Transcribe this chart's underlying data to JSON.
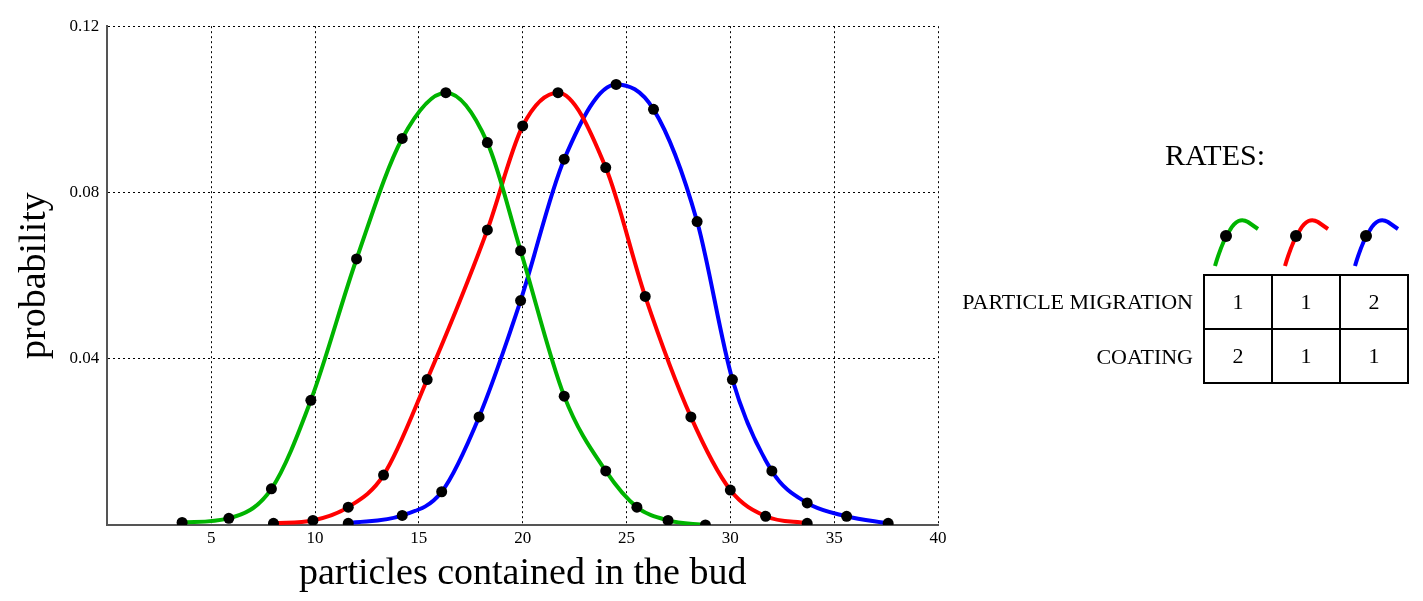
{
  "chart_data": {
    "type": "line",
    "xlabel": "particles contained in the bud",
    "ylabel": "probability",
    "xlim": [
      0,
      40
    ],
    "xticks": [
      5,
      10,
      15,
      20,
      25,
      30,
      35,
      40
    ],
    "ylim": [
      0,
      0.12
    ],
    "yticks": [
      0.04,
      0.08,
      0.12
    ],
    "grid": true,
    "marker": "circle",
    "line_style": "solid",
    "annotations": [
      "RATES:",
      "PARTICLE MIGRATION",
      "COATING",
      "1",
      "1",
      "2",
      "2",
      "1",
      "1"
    ],
    "series": [
      {
        "color": "#00b400",
        "x": [
          3.6,
          5.85,
          7.9,
          9.8,
          12.0,
          14.2,
          16.3,
          18.3,
          19.9,
          22.0,
          24.0,
          25.5,
          27.0,
          28.8
        ],
        "values": [
          0.0006,
          0.0016,
          0.0087,
          0.03,
          0.064,
          0.093,
          0.104,
          0.092,
          0.066,
          0.031,
          0.013,
          0.0043,
          0.0011,
          0
        ]
      },
      {
        "color": "#ff0000",
        "x": [
          8.0,
          9.9,
          11.6,
          13.3,
          15.4,
          18.3,
          20.0,
          21.7,
          24.0,
          25.9,
          28.1,
          30.0,
          31.7,
          33.7
        ],
        "values": [
          0.0004,
          0.0011,
          0.0043,
          0.012,
          0.035,
          0.071,
          0.096,
          0.104,
          0.086,
          0.055,
          0.026,
          0.0084,
          0.0021,
          0.0004
        ]
      },
      {
        "color": "#0000ff",
        "x": [
          11.6,
          14.2,
          16.1,
          17.9,
          19.9,
          22.0,
          24.5,
          26.3,
          28.4,
          30.1,
          32.0,
          33.7,
          35.6,
          37.6
        ],
        "values": [
          0.0004,
          0.0023,
          0.008,
          0.026,
          0.054,
          0.088,
          0.106,
          0.1,
          0.073,
          0.035,
          0.013,
          0.0053,
          0.0021,
          0.0004
        ]
      }
    ]
  }
}
